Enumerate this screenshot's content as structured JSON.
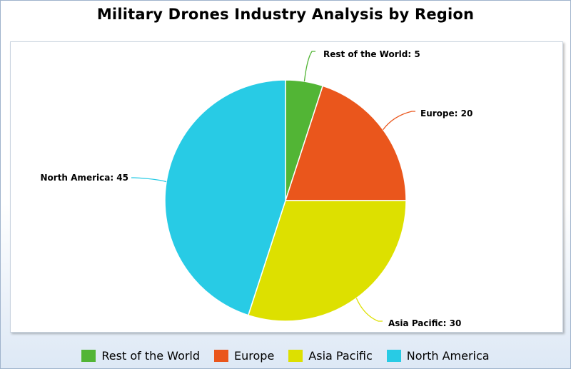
{
  "chart_data": {
    "type": "pie",
    "title": "Military Drones Industry Analysis by Region",
    "slices": [
      {
        "name": "Rest of the World",
        "value": 5,
        "color": "#52b535",
        "label": "Rest of the World: 5"
      },
      {
        "name": "Europe",
        "value": 20,
        "color": "#ea561c",
        "label": "Europe: 20"
      },
      {
        "name": "Asia Pacific",
        "value": 30,
        "color": "#dde000",
        "label": "Asia Pacific: 30"
      },
      {
        "name": "North America",
        "value": 45,
        "color": "#28cbe5",
        "label": "North America: 45"
      }
    ],
    "legend_position": "bottom"
  }
}
